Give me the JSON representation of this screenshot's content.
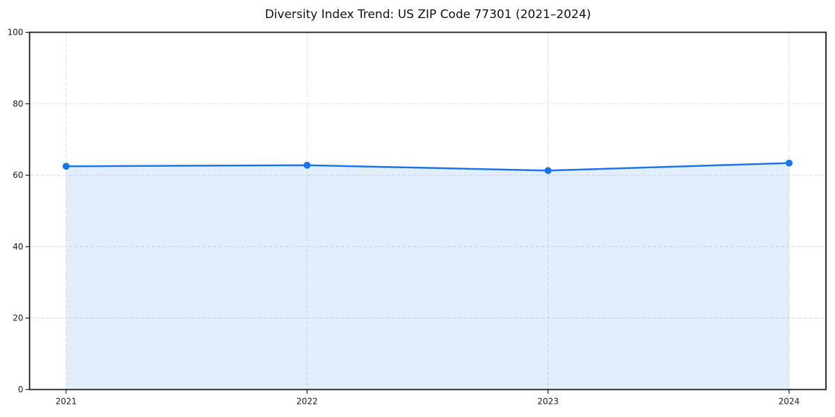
{
  "chart_data": {
    "type": "line",
    "title": "Diversity Index Trend: US ZIP Code 77301 (2021–2024)",
    "x": [
      "2021",
      "2022",
      "2023",
      "2024"
    ],
    "series": [
      {
        "name": "Diversity Index",
        "values": [
          62.5,
          62.8,
          61.3,
          63.4
        ]
      }
    ],
    "xlabel": "",
    "ylabel": "",
    "ylim": [
      0,
      100
    ],
    "yticks": [
      0,
      20,
      40,
      60,
      80,
      100
    ],
    "grid": true,
    "grid_style": "dashed",
    "area_fill": true,
    "legend_position": "none",
    "colors": {
      "line": "#1a73e8",
      "marker": "#1a73e8",
      "area": "rgba(26,115,232,0.12)",
      "grid": "#dcdcdc",
      "axis": "#1a1a1a",
      "tick_label": "#1a1a1a",
      "title": "#111111",
      "background": "#ffffff"
    }
  }
}
